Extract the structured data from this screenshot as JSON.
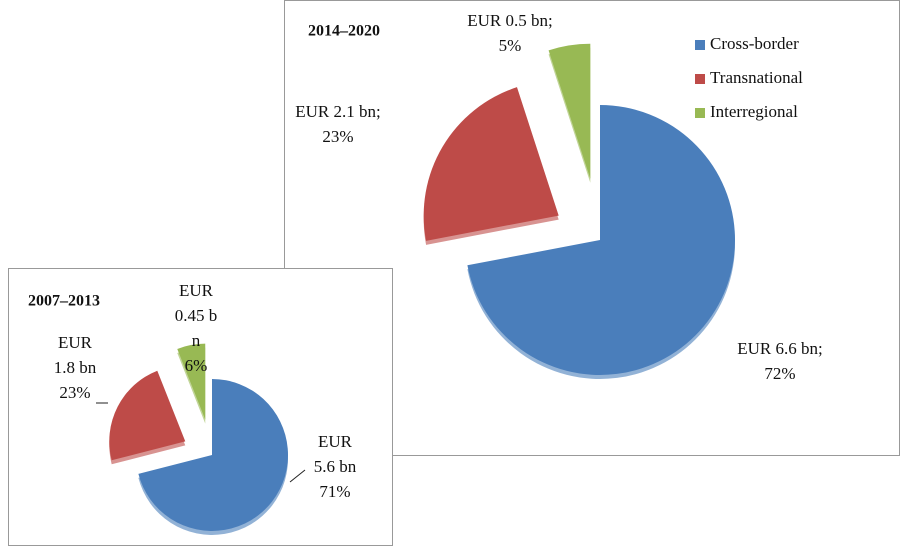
{
  "chart_data": [
    {
      "type": "pie",
      "title": "2014–2020",
      "categories": [
        "Cross-border",
        "Transnational",
        "Interregional"
      ],
      "values": [
        72,
        23,
        5
      ],
      "value_labels": [
        [
          "EUR 6.6 bn;",
          "72%"
        ],
        [
          "EUR 2.1 bn;",
          "23%"
        ],
        [
          "EUR 0.5 bn;",
          "5%"
        ]
      ],
      "colors": [
        "#4a7ebb",
        "#be4b48",
        "#98b954"
      ],
      "legend": "upper right"
    },
    {
      "type": "pie",
      "title": "2007–2013",
      "values": [
        71,
        23,
        6
      ],
      "value_labels": [
        [
          "EUR",
          "5.6 bn",
          "71%"
        ],
        [
          "EUR",
          "1.8 bn",
          "23%"
        ],
        [
          "EUR",
          "0.45 b",
          "n",
          "6%"
        ]
      ],
      "colors": [
        "#4a7ebb",
        "#be4b48",
        "#98b954"
      ]
    }
  ]
}
